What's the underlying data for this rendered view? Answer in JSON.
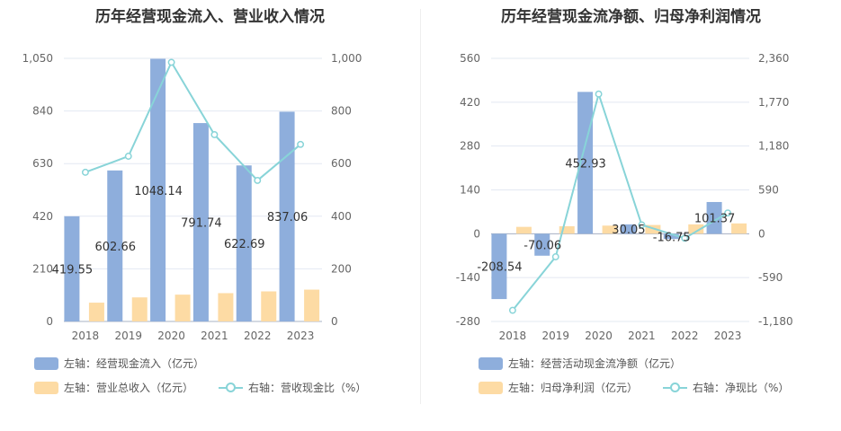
{
  "colors": {
    "bar_primary": "#8eaedc",
    "bar_secondary": "#fddba4",
    "line": "#88d4d8",
    "axis_text": "#666666",
    "grid": "#e3e8f2"
  },
  "chart_data": [
    {
      "type": "bar",
      "title": "历年经营现金流入、营业收入情况",
      "categories": [
        "2018",
        "2019",
        "2020",
        "2021",
        "2022",
        "2023"
      ],
      "left_axis": {
        "ylim": [
          0,
          1050
        ],
        "ticks": [
          "0",
          "210",
          "420",
          "630",
          "840",
          "1,050"
        ],
        "tick_values": [
          0,
          210,
          420,
          630,
          840,
          1050
        ]
      },
      "right_axis": {
        "ylim": [
          0,
          1000
        ],
        "ticks": [
          "0",
          "200",
          "400",
          "600",
          "800",
          "1,000"
        ],
        "tick_values": [
          0,
          200,
          400,
          600,
          800,
          1000
        ]
      },
      "series": [
        {
          "name": "左轴：经营现金流入（亿元）",
          "kind": "bar",
          "axis": "left",
          "color": "#8eaedc",
          "values": [
            419.55,
            602.66,
            1048.14,
            791.74,
            622.69,
            837.06
          ],
          "labels": [
            "419.55",
            "602.66",
            "1048.14",
            "791.74",
            "622.69",
            "837.06"
          ]
        },
        {
          "name": "左轴：营业总收入（亿元）",
          "kind": "bar",
          "axis": "left",
          "color": "#fddba4",
          "values": [
            75,
            96,
            107,
            113,
            120,
            127
          ]
        },
        {
          "name": "右轴：营收现金比（%）",
          "kind": "line",
          "axis": "right",
          "color": "#88d4d8",
          "values": [
            567,
            628,
            985,
            710,
            536,
            673
          ]
        }
      ],
      "legend": [
        {
          "text": "左轴：经营现金流入（亿元）",
          "type": "bar",
          "color": "#8eaedc"
        },
        {
          "text": "左轴：营业总收入（亿元）",
          "type": "bar",
          "color": "#fddba4"
        },
        {
          "text": "右轴：营收现金比（%）",
          "type": "line",
          "color": "#88d4d8"
        }
      ]
    },
    {
      "type": "bar",
      "title": "历年经营现金流净额、归母净利润情况",
      "categories": [
        "2018",
        "2019",
        "2020",
        "2021",
        "2022",
        "2023"
      ],
      "left_axis": {
        "ylim": [
          -280,
          560
        ],
        "ticks": [
          "-280",
          "-140",
          "0",
          "140",
          "280",
          "420",
          "560"
        ],
        "tick_values": [
          -280,
          -140,
          0,
          140,
          280,
          420,
          560
        ]
      },
      "right_axis": {
        "ylim": [
          -1180,
          2360
        ],
        "ticks": [
          "-1,180",
          "-590",
          "0",
          "590",
          "1,180",
          "1,770",
          "2,360"
        ],
        "tick_values": [
          -1180,
          -590,
          0,
          590,
          1180,
          1770,
          2360
        ]
      },
      "series": [
        {
          "name": "左轴：经营活动现金流净额（亿元）",
          "kind": "bar",
          "axis": "left",
          "color": "#8eaedc",
          "values": [
            -208.54,
            -70.06,
            452.93,
            30.05,
            -16.75,
            101.37
          ],
          "labels": [
            "-208.54",
            "-70.06",
            "452.93",
            "30.05",
            "-16.75",
            "101.37"
          ]
        },
        {
          "name": "左轴：归母净利润（亿元）",
          "kind": "bar",
          "axis": "left",
          "color": "#fddba4",
          "values": [
            22,
            24,
            26,
            28,
            30,
            33
          ]
        },
        {
          "name": "右轴：净现比（%）",
          "kind": "line",
          "axis": "right",
          "color": "#88d4d8",
          "values": [
            -1030,
            -310,
            1880,
            120,
            -60,
            280
          ]
        }
      ],
      "legend": [
        {
          "text": "左轴：经营活动现金流净额（亿元）",
          "type": "bar",
          "color": "#8eaedc"
        },
        {
          "text": "左轴：归母净利润（亿元）",
          "type": "bar",
          "color": "#fddba4"
        },
        {
          "text": "右轴：净现比（%）",
          "type": "line",
          "color": "#88d4d8"
        }
      ]
    }
  ]
}
